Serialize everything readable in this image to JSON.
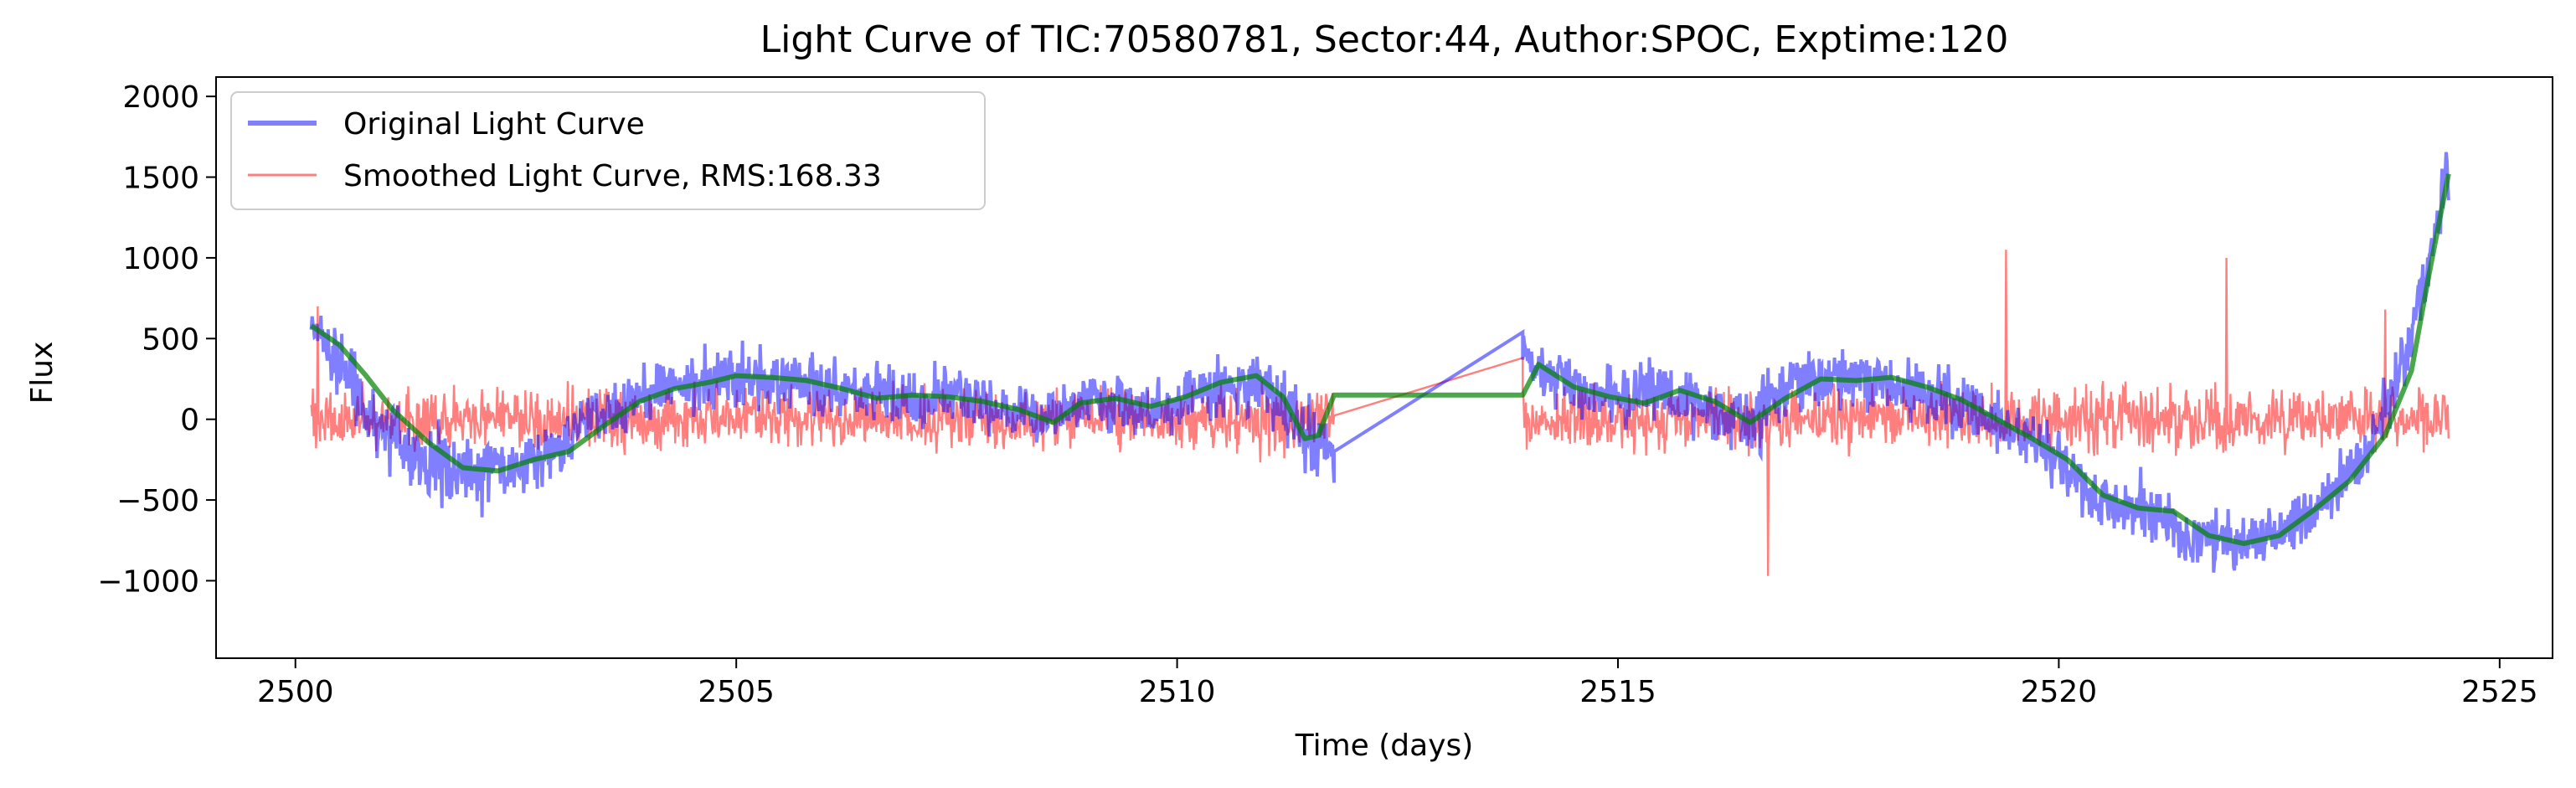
{
  "chart_data": {
    "type": "line",
    "title": "Light Curve of TIC:70580781, Sector:44, Author:SPOC, Exptime:120",
    "xlabel": "Time (days)",
    "ylabel": "Flux",
    "xlim": [
      2499.1,
      2525.6
    ],
    "ylim": [
      -1480,
      2120
    ],
    "xticks": [
      2500,
      2505,
      2510,
      2515,
      2520,
      2525
    ],
    "yticks": [
      -1000,
      -500,
      0,
      500,
      1000,
      1500,
      2000
    ],
    "ytick_labels": [
      "−1000",
      "−500",
      "0",
      "500",
      "1000",
      "1500",
      "2000"
    ],
    "grid": false,
    "legend_position": "top-left",
    "colors": {
      "original": "#0000ff",
      "smoothed": "#ff0000",
      "trend": "#008000"
    },
    "legend": [
      "Original Light Curve",
      "Smoothed Light Curve, RMS:168.33"
    ],
    "series": [
      {
        "name": "Original Light Curve",
        "role": "original",
        "envelope": [
          {
            "x": 2500.18,
            "y": 580,
            "spread": 180
          },
          {
            "x": 2500.6,
            "y": 250,
            "spread": 330
          },
          {
            "x": 2501.0,
            "y": -100,
            "spread": 320
          },
          {
            "x": 2501.5,
            "y": -280,
            "spread": 330
          },
          {
            "x": 2502.0,
            "y": -330,
            "spread": 320
          },
          {
            "x": 2502.5,
            "y": -290,
            "spread": 320
          },
          {
            "x": 2503.0,
            "y": -180,
            "spread": 300
          },
          {
            "x": 2503.5,
            "y": 50,
            "spread": 290
          },
          {
            "x": 2504.0,
            "y": 180,
            "spread": 280
          },
          {
            "x": 2504.5,
            "y": 220,
            "spread": 270
          },
          {
            "x": 2505.0,
            "y": 250,
            "spread": 270
          },
          {
            "x": 2505.5,
            "y": 230,
            "spread": 260
          },
          {
            "x": 2506.0,
            "y": 200,
            "spread": 260
          },
          {
            "x": 2506.5,
            "y": 150,
            "spread": 250
          },
          {
            "x": 2507.0,
            "y": 130,
            "spread": 250
          },
          {
            "x": 2507.5,
            "y": 140,
            "spread": 250
          },
          {
            "x": 2508.0,
            "y": 90,
            "spread": 250
          },
          {
            "x": 2508.5,
            "y": 20,
            "spread": 250
          },
          {
            "x": 2509.0,
            "y": 150,
            "spread": 250
          },
          {
            "x": 2509.5,
            "y": 60,
            "spread": 250
          },
          {
            "x": 2510.0,
            "y": 100,
            "spread": 250
          },
          {
            "x": 2510.5,
            "y": 220,
            "spread": 260
          },
          {
            "x": 2511.0,
            "y": 230,
            "spread": 300
          },
          {
            "x": 2511.4,
            "y": -60,
            "spread": 330
          },
          {
            "x": 2511.78,
            "y": -200,
            "spread": 300
          }
        ],
        "segment_2": [
          {
            "x": 2513.92,
            "y": 360,
            "spread": 220
          },
          {
            "x": 2514.5,
            "y": 180,
            "spread": 260
          },
          {
            "x": 2515.0,
            "y": 120,
            "spread": 270
          },
          {
            "x": 2515.5,
            "y": 170,
            "spread": 270
          },
          {
            "x": 2516.0,
            "y": 60,
            "spread": 280
          },
          {
            "x": 2516.5,
            "y": -20,
            "spread": 280
          },
          {
            "x": 2517.0,
            "y": 220,
            "spread": 280
          },
          {
            "x": 2517.5,
            "y": 250,
            "spread": 270
          },
          {
            "x": 2518.0,
            "y": 250,
            "spread": 270
          },
          {
            "x": 2518.5,
            "y": 170,
            "spread": 260
          },
          {
            "x": 2519.0,
            "y": 60,
            "spread": 260
          },
          {
            "x": 2519.5,
            "y": -80,
            "spread": 260
          },
          {
            "x": 2520.0,
            "y": -250,
            "spread": 260
          },
          {
            "x": 2520.5,
            "y": -530,
            "spread": 270
          },
          {
            "x": 2521.0,
            "y": -560,
            "spread": 270
          },
          {
            "x": 2521.5,
            "y": -730,
            "spread": 270
          },
          {
            "x": 2522.0,
            "y": -770,
            "spread": 260
          },
          {
            "x": 2522.5,
            "y": -700,
            "spread": 260
          },
          {
            "x": 2523.0,
            "y": -540,
            "spread": 260
          },
          {
            "x": 2523.5,
            "y": -200,
            "spread": 260
          },
          {
            "x": 2524.0,
            "y": 500,
            "spread": 300
          },
          {
            "x": 2524.42,
            "y": 1500,
            "spread": 350
          }
        ]
      },
      {
        "name": "Smoothed Light Curve, RMS:168.33",
        "role": "smoothed",
        "segment_1": {
          "x_start": 2500.18,
          "x_end": 2511.78,
          "center": 0,
          "spread": 280
        },
        "segment_2": {
          "x_start": 2513.92,
          "x_end": 2524.42,
          "center": 0,
          "spread": 280
        },
        "spikes": [
          {
            "x": 2519.4,
            "y": 1050
          },
          {
            "x": 2521.9,
            "y": 1000
          },
          {
            "x": 2516.7,
            "y": -970
          },
          {
            "x": 2500.25,
            "y": 700
          },
          {
            "x": 2523.7,
            "y": 680
          }
        ]
      },
      {
        "role": "trend",
        "points": [
          [
            2500.18,
            580
          ],
          [
            2500.5,
            460
          ],
          [
            2500.8,
            270
          ],
          [
            2501.1,
            60
          ],
          [
            2501.5,
            -140
          ],
          [
            2501.9,
            -300
          ],
          [
            2502.3,
            -320
          ],
          [
            2502.7,
            -250
          ],
          [
            2503.1,
            -200
          ],
          [
            2503.5,
            -40
          ],
          [
            2503.9,
            110
          ],
          [
            2504.3,
            190
          ],
          [
            2504.7,
            230
          ],
          [
            2505.0,
            270
          ],
          [
            2505.4,
            260
          ],
          [
            2505.8,
            240
          ],
          [
            2506.2,
            190
          ],
          [
            2506.6,
            130
          ],
          [
            2507.0,
            150
          ],
          [
            2507.4,
            140
          ],
          [
            2507.8,
            110
          ],
          [
            2508.2,
            60
          ],
          [
            2508.6,
            -20
          ],
          [
            2508.9,
            100
          ],
          [
            2509.3,
            130
          ],
          [
            2509.7,
            80
          ],
          [
            2510.1,
            140
          ],
          [
            2510.5,
            230
          ],
          [
            2510.9,
            270
          ],
          [
            2511.2,
            140
          ],
          [
            2511.45,
            -120
          ],
          [
            2511.6,
            -100
          ],
          [
            2511.78,
            150
          ],
          [
            2513.92,
            150
          ],
          [
            2514.1,
            340
          ],
          [
            2514.5,
            200
          ],
          [
            2514.9,
            140
          ],
          [
            2515.3,
            100
          ],
          [
            2515.7,
            180
          ],
          [
            2516.1,
            110
          ],
          [
            2516.5,
            -20
          ],
          [
            2516.9,
            130
          ],
          [
            2517.3,
            250
          ],
          [
            2517.7,
            240
          ],
          [
            2518.1,
            260
          ],
          [
            2518.5,
            200
          ],
          [
            2518.9,
            120
          ],
          [
            2519.3,
            0
          ],
          [
            2519.7,
            -120
          ],
          [
            2520.1,
            -250
          ],
          [
            2520.5,
            -470
          ],
          [
            2520.9,
            -550
          ],
          [
            2521.3,
            -570
          ],
          [
            2521.7,
            -720
          ],
          [
            2522.1,
            -770
          ],
          [
            2522.5,
            -720
          ],
          [
            2522.9,
            -560
          ],
          [
            2523.3,
            -380
          ],
          [
            2523.7,
            -100
          ],
          [
            2524.0,
            300
          ],
          [
            2524.2,
            900
          ],
          [
            2524.42,
            1520
          ]
        ]
      }
    ],
    "gap": {
      "from": 2511.78,
      "to": 2513.92,
      "original_from": -200,
      "original_to": 540,
      "smoothed_from": -350,
      "smoothed_to": 380,
      "trend_value": 150
    }
  }
}
